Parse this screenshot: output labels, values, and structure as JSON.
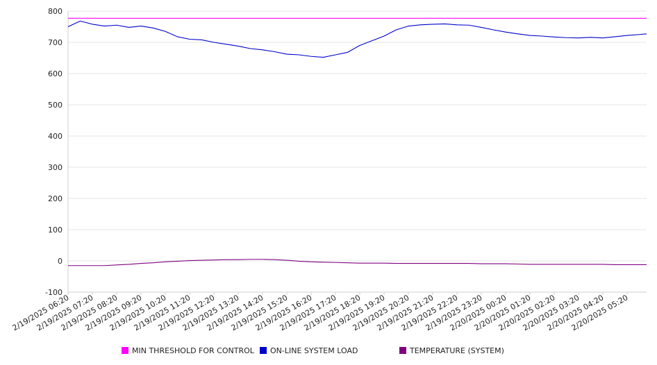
{
  "chart_data": {
    "type": "line",
    "title": "",
    "xlabel": "",
    "ylabel": "",
    "ylim": [
      -100,
      800
    ],
    "yticks": [
      -100,
      0,
      100,
      200,
      300,
      400,
      500,
      600,
      700,
      800
    ],
    "grid": "horizontal",
    "legend_position": "bottom",
    "categories": [
      "2/19/2025 06:20",
      "2/19/2025 07:20",
      "2/19/2025 08:20",
      "2/19/2025 09:20",
      "2/19/2025 10:20",
      "2/19/2025 11:20",
      "2/19/2025 12:20",
      "2/19/2025 13:20",
      "2/19/2025 14:20",
      "2/19/2025 15:20",
      "2/19/2025 16:20",
      "2/19/2025 17:20",
      "2/19/2025 18:20",
      "2/19/2025 19:20",
      "2/19/2025 20:20",
      "2/19/2025 21:20",
      "2/19/2025 22:20",
      "2/19/2025 23:20",
      "2/20/2025 00:20",
      "2/20/2025 01:20",
      "2/20/2025 02:20",
      "2/20/2025 03:20",
      "2/20/2025 04:20",
      "2/20/2025 05:20"
    ],
    "x": [
      0,
      0.5,
      1,
      1.5,
      2,
      2.5,
      3,
      3.5,
      4,
      4.5,
      5,
      5.5,
      6,
      6.5,
      7,
      7.5,
      8,
      8.5,
      9,
      9.5,
      10,
      10.5,
      11,
      11.5,
      12,
      12.5,
      13,
      13.5,
      14,
      14.5,
      15,
      15.5,
      16,
      16.5,
      17,
      17.5,
      18,
      18.5,
      19,
      19.5,
      20,
      20.5,
      21,
      21.5,
      22,
      22.5,
      23,
      23.5,
      23.8
    ],
    "series": [
      {
        "name": "MIN THRESHOLD FOR CONTROL",
        "color": "#ff00ff",
        "values": [
          777,
          777,
          777,
          777,
          777,
          777,
          777,
          777,
          777,
          777,
          777,
          777,
          777,
          777,
          777,
          777,
          777,
          777,
          777,
          777,
          777,
          777,
          777,
          777,
          777,
          777,
          777,
          777,
          777,
          777,
          777,
          777,
          777,
          777,
          777,
          777,
          777,
          777,
          777,
          777,
          777,
          777,
          777,
          777,
          777,
          777,
          777,
          777,
          777
        ]
      },
      {
        "name": "ON-LINE SYSTEM LOAD",
        "color": "#0000cc",
        "values": [
          750,
          768,
          758,
          752,
          755,
          748,
          752,
          746,
          735,
          718,
          710,
          708,
          700,
          694,
          688,
          680,
          676,
          670,
          662,
          660,
          655,
          652,
          660,
          668,
          690,
          705,
          720,
          740,
          752,
          756,
          758,
          759,
          756,
          755,
          748,
          740,
          733,
          727,
          722,
          720,
          717,
          715,
          714,
          716,
          714,
          718,
          722,
          725,
          727
        ]
      },
      {
        "name": "TEMPERATURE (SYSTEM)",
        "color": "#800080",
        "values": [
          -15,
          -15,
          -15,
          -15,
          -13,
          -11,
          -8,
          -6,
          -3,
          -1,
          1,
          2,
          3,
          4,
          4,
          5,
          5,
          4,
          2,
          -1,
          -3,
          -4,
          -5,
          -6,
          -7,
          -7,
          -7,
          -8,
          -8,
          -8,
          -8,
          -8,
          -8,
          -8,
          -9,
          -9,
          -9,
          -10,
          -11,
          -11,
          -11,
          -11,
          -11,
          -11,
          -11,
          -12,
          -12,
          -12,
          -12
        ]
      }
    ]
  }
}
